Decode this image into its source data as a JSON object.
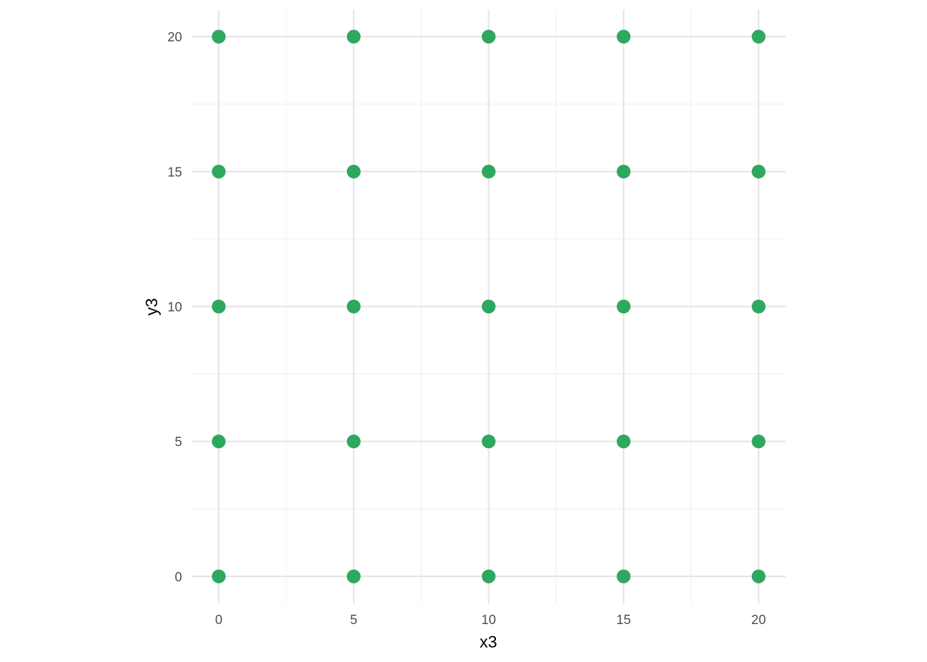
{
  "chart_data": {
    "type": "scatter",
    "title": "",
    "xlabel": "x3",
    "ylabel": "y3",
    "xlim": [
      -1,
      21
    ],
    "ylim": [
      -1,
      21
    ],
    "x_ticks": [
      0,
      5,
      10,
      15,
      20
    ],
    "y_ticks": [
      0,
      5,
      10,
      15,
      20
    ],
    "x_tick_labels": [
      "0",
      "5",
      "10",
      "15",
      "20"
    ],
    "y_tick_labels": [
      "0",
      "5",
      "10",
      "15",
      "20"
    ],
    "grid": true,
    "legend": "none",
    "colors": {
      "point": "#2ea85f",
      "grid_major": "#e5e5e5",
      "grid_minor": "#efefef"
    },
    "series": [
      {
        "points": [
          {
            "x": 0,
            "y": 0
          },
          {
            "x": 5,
            "y": 0
          },
          {
            "x": 10,
            "y": 0
          },
          {
            "x": 15,
            "y": 0
          },
          {
            "x": 20,
            "y": 0
          },
          {
            "x": 0,
            "y": 5
          },
          {
            "x": 5,
            "y": 5
          },
          {
            "x": 10,
            "y": 5
          },
          {
            "x": 15,
            "y": 5
          },
          {
            "x": 20,
            "y": 5
          },
          {
            "x": 0,
            "y": 10
          },
          {
            "x": 5,
            "y": 10
          },
          {
            "x": 10,
            "y": 10
          },
          {
            "x": 15,
            "y": 10
          },
          {
            "x": 20,
            "y": 10
          },
          {
            "x": 0,
            "y": 15
          },
          {
            "x": 5,
            "y": 15
          },
          {
            "x": 10,
            "y": 15
          },
          {
            "x": 15,
            "y": 15
          },
          {
            "x": 20,
            "y": 15
          },
          {
            "x": 0,
            "y": 20
          },
          {
            "x": 5,
            "y": 20
          },
          {
            "x": 10,
            "y": 20
          },
          {
            "x": 15,
            "y": 20
          },
          {
            "x": 20,
            "y": 20
          }
        ]
      }
    ]
  }
}
